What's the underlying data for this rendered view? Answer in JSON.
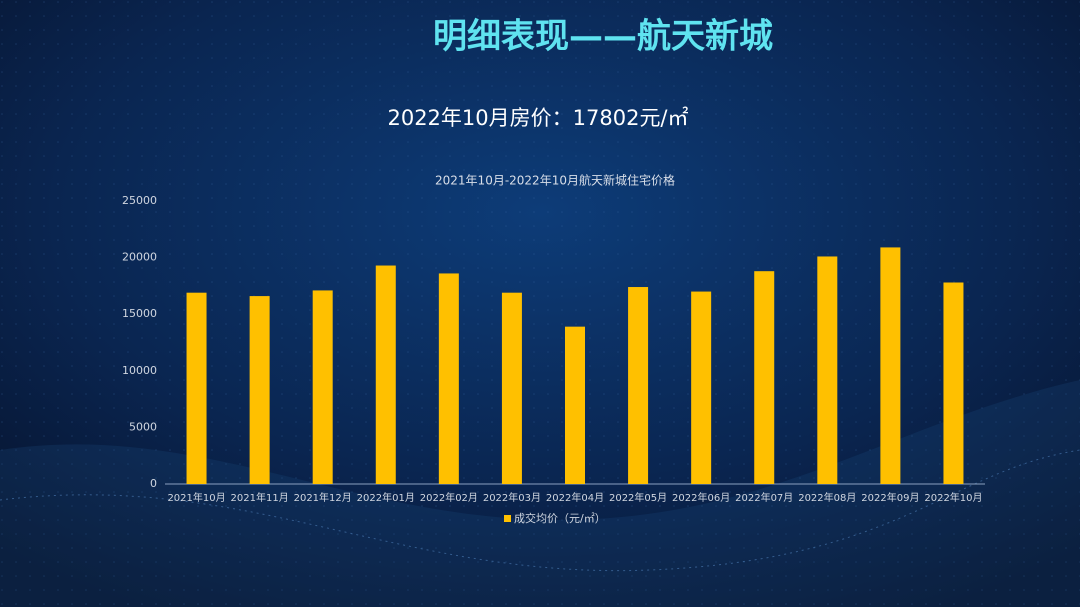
{
  "chart_data": {
    "type": "bar",
    "title": "明细表现——航天新城",
    "subtitle": "2022年10月房价：17802元/㎡",
    "chart_title": "2021年10月-2022年10月航天新城住宅价格",
    "categories": [
      "2021年10月",
      "2021年11月",
      "2021年12月",
      "2022年01月",
      "2022年02月",
      "2022年03月",
      "2022年04月",
      "2022年05月",
      "2022年06月",
      "2022年07月",
      "2022年08月",
      "2022年09月",
      "2022年10月"
    ],
    "series": [
      {
        "name": "成交均价（元/㎡）",
        "color": "#ffc000",
        "values": [
          16900,
          16600,
          17100,
          19300,
          18600,
          16900,
          13900,
          17400,
          17000,
          18800,
          20100,
          20900,
          17800
        ]
      }
    ],
    "ylim": [
      0,
      25000
    ],
    "yticks": [
      0,
      5000,
      10000,
      15000,
      20000,
      25000
    ],
    "grid": false
  }
}
